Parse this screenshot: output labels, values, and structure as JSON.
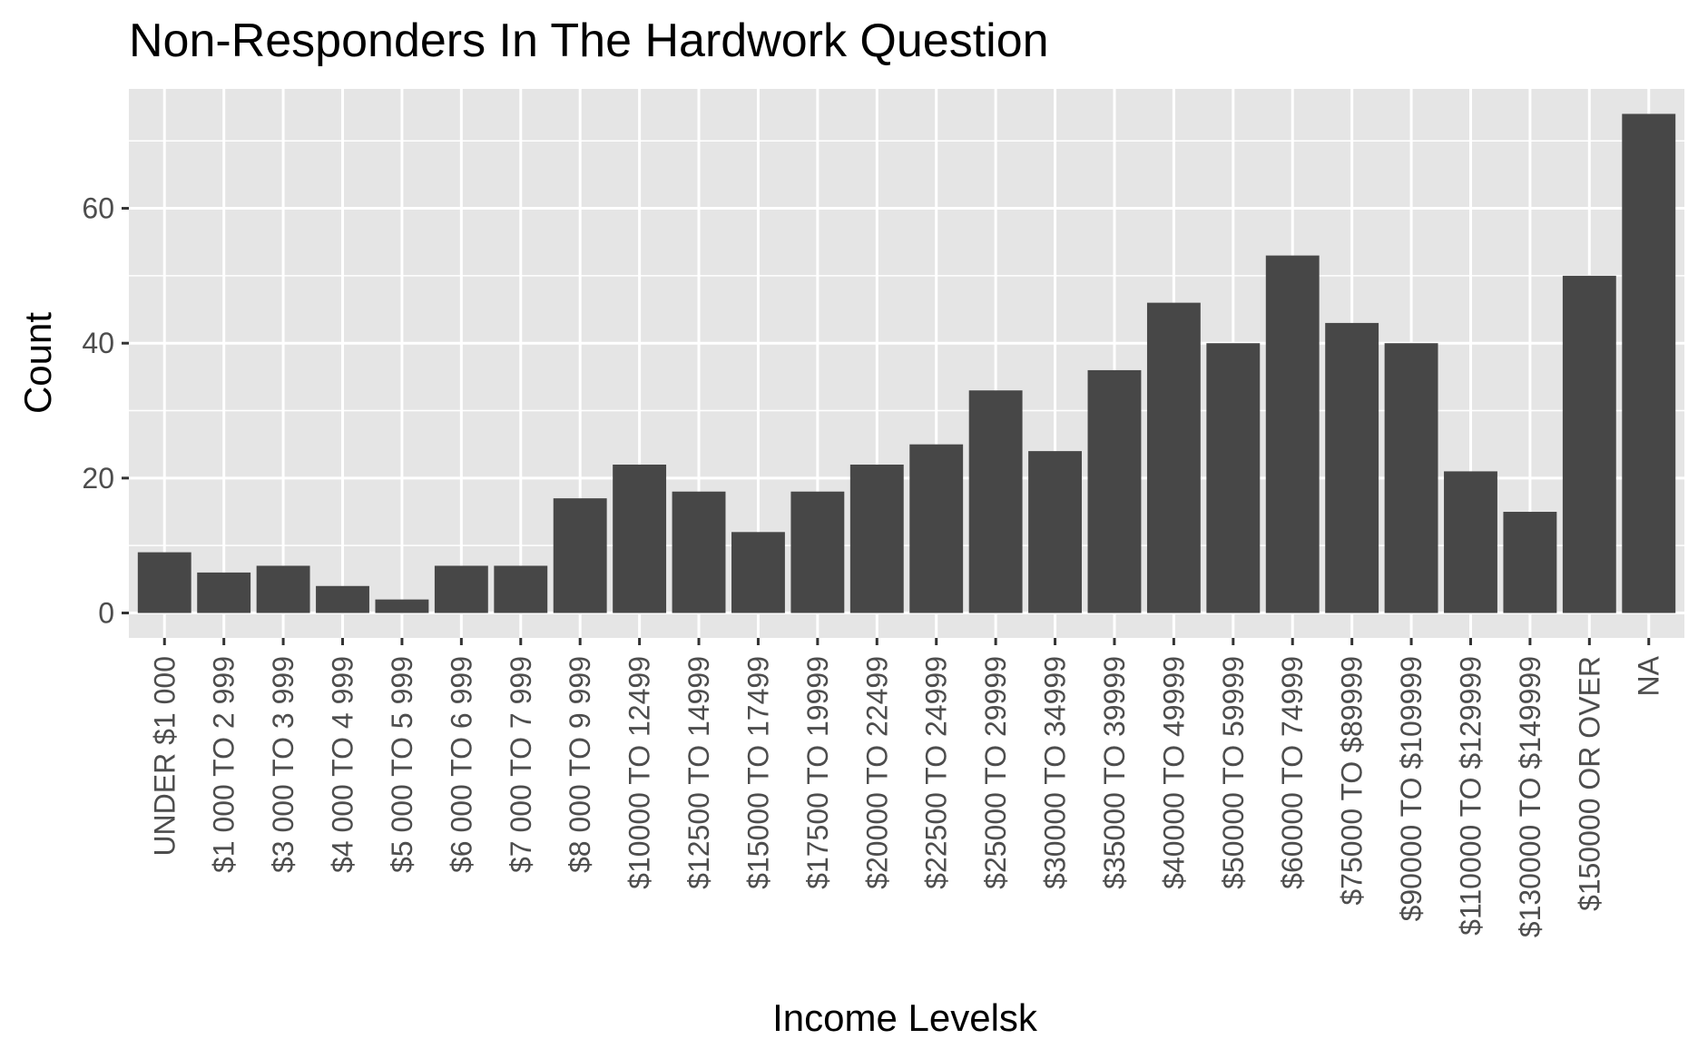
{
  "chart_data": {
    "type": "bar",
    "title": "Non-Responders In The Hardwork Question",
    "xlabel": "Income Levelsk",
    "ylabel": "Count",
    "categories": [
      "UNDER $1 000",
      "$1 000 TO 2 999",
      "$3 000 TO 3 999",
      "$4 000 TO 4 999",
      "$5 000 TO 5 999",
      "$6 000 TO 6 999",
      "$7 000 TO 7 999",
      "$8 000 TO 9 999",
      "$10000 TO 12499",
      "$12500 TO 14999",
      "$15000 TO 17499",
      "$17500 TO 19999",
      "$20000 TO 22499",
      "$22500 TO 24999",
      "$25000 TO 29999",
      "$30000 TO 34999",
      "$35000 TO 39999",
      "$40000 TO 49999",
      "$50000 TO 59999",
      "$60000 TO 74999",
      "$75000 TO $89999",
      "$90000 TO $109999",
      "$110000 TO $129999",
      "$130000 TO $149999",
      "$150000 OR OVER",
      "NA"
    ],
    "values": [
      9,
      6,
      7,
      4,
      2,
      7,
      7,
      17,
      22,
      18,
      12,
      18,
      22,
      25,
      33,
      24,
      36,
      46,
      40,
      53,
      43,
      40,
      21,
      15,
      50,
      74
    ],
    "y_ticks": [
      0,
      20,
      40,
      60
    ],
    "ylim": [
      -3.7,
      77.7
    ],
    "grid": true,
    "colors": {
      "bar": "#474747",
      "panel": "#e5e5e5",
      "grid": "#ffffff",
      "tick_text": "#4d4d4d"
    }
  }
}
